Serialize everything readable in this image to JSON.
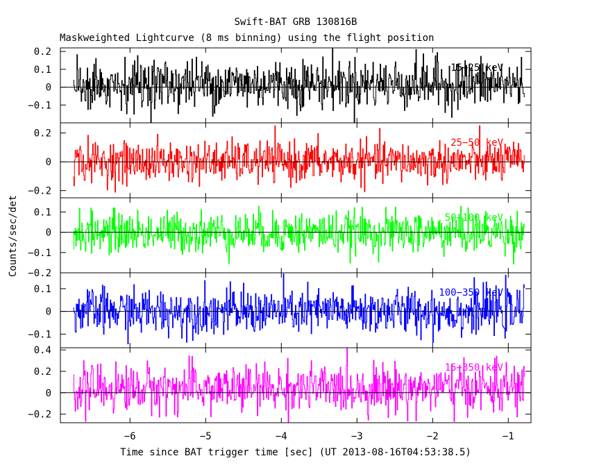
{
  "chart_data": {
    "type": "line",
    "title": "Swift-BAT GRB 130816B",
    "subtitle": "Maskweighted Lightcurve (8 ms binning) using the flight position",
    "xlabel": "Time since BAT trigger time [sec] (UT 2013-08-16T04:53:38.5)",
    "ylabel": "Counts/sec/det",
    "xlim": [
      -6.92,
      -0.7
    ],
    "x_range": [
      -6.75,
      -0.78
    ],
    "bin_width": 0.008,
    "x_ticks": [
      -6,
      -5,
      -4,
      -3,
      -2,
      -1
    ],
    "x_tick_labels": [
      "−6",
      "−5",
      "−4",
      "−3",
      "−2",
      "−1"
    ],
    "grid": false,
    "panels": [
      {
        "name": "15−25 keV",
        "color": "#000000",
        "ylim": [
          -0.2,
          0.22
        ],
        "y_ticks": [
          -0.1,
          0,
          0.1,
          0.2
        ],
        "y_tick_labels": [
          "−0.1",
          "0",
          "0.1",
          "0.2"
        ],
        "mean": 0.02,
        "sigma": 0.07
      },
      {
        "name": "25−50 keV",
        "color": "#ff0000",
        "ylim": [
          -0.25,
          0.27
        ],
        "y_ticks": [
          -0.2,
          0,
          0.2
        ],
        "y_tick_labels": [
          "−0.2",
          "0",
          "0.2"
        ],
        "mean": 0.0,
        "sigma": 0.07
      },
      {
        "name": "50−100 keV",
        "color": "#00ff00",
        "ylim": [
          -0.2,
          0.17
        ],
        "y_ticks": [
          -0.2,
          -0.1,
          0,
          0.1
        ],
        "y_tick_labels": [
          "−0.2",
          "−0.1",
          "0",
          "0.1"
        ],
        "mean": 0.0,
        "sigma": 0.05
      },
      {
        "name": "100−350 keV",
        "color": "#0000ff",
        "ylim": [
          -0.16,
          0.17
        ],
        "y_ticks": [
          -0.1,
          0,
          0.1
        ],
        "y_tick_labels": [
          "−0.1",
          "0",
          "0.1"
        ],
        "mean": 0.0,
        "sigma": 0.05
      },
      {
        "name": "15−350 keV",
        "color": "#ff00ff",
        "ylim": [
          -0.28,
          0.42
        ],
        "y_ticks": [
          -0.2,
          0,
          0.2,
          0.4
        ],
        "y_tick_labels": [
          "−0.2",
          "0",
          "0.2",
          "0.4"
        ],
        "mean": 0.04,
        "sigma": 0.11
      }
    ]
  }
}
